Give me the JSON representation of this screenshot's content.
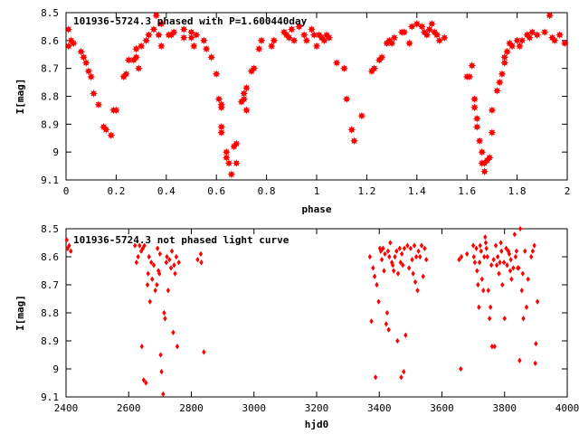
{
  "colors": {
    "series": "#ff0000",
    "axis": "#000000",
    "background": "#ffffff"
  },
  "chart_data": [
    {
      "type": "scatter",
      "title": "101936-5724.3 phased with P=1.600440day",
      "xlabel": "phase",
      "ylabel": "I[mag]",
      "xlim": [
        0,
        2
      ],
      "ylim": [
        8.5,
        9.1
      ],
      "y_inverted": true,
      "x_ticks": [
        "0",
        "0.2",
        "0.4",
        "0.6",
        "0.8",
        "1",
        "1.2",
        "1.4",
        "1.6",
        "1.8",
        "2"
      ],
      "y_ticks": [
        "8.5",
        "8.6",
        "8.7",
        "8.8",
        "8.9",
        "9",
        "9.1"
      ],
      "grid": false,
      "marker": "star",
      "points": [
        [
          0.01,
          8.56
        ],
        [
          0.01,
          8.62
        ],
        [
          0.02,
          8.6
        ],
        [
          0.03,
          8.61
        ],
        [
          0.06,
          8.64
        ],
        [
          0.07,
          8.66
        ],
        [
          0.08,
          8.68
        ],
        [
          0.09,
          8.71
        ],
        [
          0.1,
          8.73
        ],
        [
          0.11,
          8.79
        ],
        [
          0.13,
          8.83
        ],
        [
          0.15,
          8.91
        ],
        [
          0.16,
          8.92
        ],
        [
          0.18,
          8.94
        ],
        [
          0.19,
          8.85
        ],
        [
          0.2,
          8.85
        ],
        [
          0.23,
          8.73
        ],
        [
          0.24,
          8.72
        ],
        [
          0.25,
          8.67
        ],
        [
          0.27,
          8.67
        ],
        [
          0.28,
          8.66
        ],
        [
          0.28,
          8.63
        ],
        [
          0.29,
          8.7
        ],
        [
          0.3,
          8.62
        ],
        [
          0.32,
          8.6
        ],
        [
          0.33,
          8.58
        ],
        [
          0.35,
          8.56
        ],
        [
          0.36,
          8.51
        ],
        [
          0.37,
          8.58
        ],
        [
          0.38,
          8.54
        ],
        [
          0.38,
          8.62
        ],
        [
          0.41,
          8.58
        ],
        [
          0.42,
          8.58
        ],
        [
          0.43,
          8.57
        ],
        [
          0.47,
          8.56
        ],
        [
          0.47,
          8.59
        ],
        [
          0.5,
          8.59
        ],
        [
          0.5,
          8.57
        ],
        [
          0.51,
          8.62
        ],
        [
          0.52,
          8.58
        ],
        [
          0.55,
          8.6
        ],
        [
          0.56,
          8.63
        ],
        [
          0.58,
          8.66
        ],
        [
          0.6,
          8.72
        ],
        [
          0.61,
          8.81
        ],
        [
          0.62,
          8.83
        ],
        [
          0.62,
          8.84
        ],
        [
          0.62,
          8.91
        ],
        [
          0.62,
          8.93
        ],
        [
          0.64,
          9.02
        ],
        [
          0.64,
          9.0
        ],
        [
          0.65,
          9.04
        ],
        [
          0.66,
          9.08
        ],
        [
          0.67,
          8.98
        ],
        [
          0.68,
          8.97
        ],
        [
          0.68,
          9.04
        ],
        [
          0.7,
          8.82
        ],
        [
          0.71,
          8.81
        ],
        [
          0.71,
          8.79
        ],
        [
          0.72,
          8.77
        ],
        [
          0.72,
          8.85
        ],
        [
          0.74,
          8.71
        ],
        [
          0.75,
          8.7
        ],
        [
          0.77,
          8.63
        ],
        [
          0.78,
          8.6
        ],
        [
          0.82,
          8.62
        ],
        [
          0.83,
          8.6
        ],
        [
          0.87,
          8.57
        ],
        [
          0.88,
          8.58
        ],
        [
          0.89,
          8.59
        ],
        [
          0.9,
          8.56
        ],
        [
          0.91,
          8.6
        ],
        [
          0.93,
          8.55
        ],
        [
          0.95,
          8.58
        ],
        [
          0.96,
          8.6
        ],
        [
          0.98,
          8.56
        ],
        [
          0.99,
          8.58
        ],
        [
          1.0,
          8.62
        ],
        [
          1.01,
          8.58
        ],
        [
          1.02,
          8.59
        ],
        [
          1.03,
          8.6
        ],
        [
          1.04,
          8.58
        ],
        [
          1.05,
          8.59
        ],
        [
          1.08,
          8.68
        ],
        [
          1.11,
          8.7
        ],
        [
          1.12,
          8.81
        ],
        [
          1.14,
          8.92
        ],
        [
          1.15,
          8.96
        ],
        [
          1.18,
          8.87
        ],
        [
          1.22,
          8.71
        ],
        [
          1.23,
          8.7
        ],
        [
          1.25,
          8.67
        ],
        [
          1.26,
          8.66
        ],
        [
          1.28,
          8.61
        ],
        [
          1.29,
          8.6
        ],
        [
          1.3,
          8.61
        ],
        [
          1.31,
          8.59
        ],
        [
          1.34,
          8.57
        ],
        [
          1.35,
          8.57
        ],
        [
          1.37,
          8.61
        ],
        [
          1.38,
          8.55
        ],
        [
          1.4,
          8.54
        ],
        [
          1.42,
          8.55
        ],
        [
          1.43,
          8.57
        ],
        [
          1.44,
          8.58
        ],
        [
          1.45,
          8.56
        ],
        [
          1.46,
          8.54
        ],
        [
          1.47,
          8.57
        ],
        [
          1.48,
          8.58
        ],
        [
          1.49,
          8.6
        ],
        [
          1.51,
          8.59
        ],
        [
          1.6,
          8.73
        ],
        [
          1.61,
          8.73
        ],
        [
          1.62,
          8.69
        ],
        [
          1.63,
          8.81
        ],
        [
          1.63,
          8.84
        ],
        [
          1.64,
          8.88
        ],
        [
          1.64,
          8.91
        ],
        [
          1.65,
          8.96
        ],
        [
          1.66,
          9.0
        ],
        [
          1.66,
          9.04
        ],
        [
          1.67,
          9.04
        ],
        [
          1.67,
          9.07
        ],
        [
          1.68,
          9.03
        ],
        [
          1.69,
          9.02
        ],
        [
          1.7,
          8.93
        ],
        [
          1.7,
          8.85
        ],
        [
          1.72,
          8.78
        ],
        [
          1.73,
          8.75
        ],
        [
          1.74,
          8.72
        ],
        [
          1.75,
          8.68
        ],
        [
          1.75,
          8.66
        ],
        [
          1.76,
          8.64
        ],
        [
          1.77,
          8.61
        ],
        [
          1.78,
          8.62
        ],
        [
          1.8,
          8.6
        ],
        [
          1.81,
          8.62
        ],
        [
          1.82,
          8.6
        ],
        [
          1.84,
          8.58
        ],
        [
          1.85,
          8.59
        ],
        [
          1.86,
          8.57
        ],
        [
          1.88,
          8.58
        ],
        [
          1.91,
          8.57
        ],
        [
          1.93,
          8.51
        ],
        [
          1.94,
          8.59
        ],
        [
          1.95,
          8.6
        ],
        [
          1.97,
          8.58
        ],
        [
          1.99,
          8.61
        ]
      ]
    },
    {
      "type": "scatter",
      "title": "101936-5724.3 not phased light curve",
      "xlabel": "hjd0",
      "ylabel": "I[mag]",
      "xlim": [
        2400,
        4000
      ],
      "ylim": [
        8.5,
        9.1
      ],
      "y_inverted": true,
      "x_ticks": [
        "2400",
        "2600",
        "2800",
        "3000",
        "3200",
        "3400",
        "3600",
        "3800",
        "4000"
      ],
      "y_ticks": [
        "8.5",
        "8.6",
        "8.7",
        "8.8",
        "8.9",
        "9",
        "9.1"
      ],
      "grid": false,
      "marker": "diamond",
      "points": [
        [
          2402,
          8.54
        ],
        [
          2405,
          8.57
        ],
        [
          2410,
          8.56
        ],
        [
          2415,
          8.58
        ],
        [
          2620,
          8.56
        ],
        [
          2625,
          8.62
        ],
        [
          2630,
          8.6
        ],
        [
          2635,
          8.56
        ],
        [
          2640,
          8.58
        ],
        [
          2642,
          8.92
        ],
        [
          2645,
          8.57
        ],
        [
          2648,
          9.04
        ],
        [
          2650,
          8.56
        ],
        [
          2655,
          9.05
        ],
        [
          2660,
          8.7
        ],
        [
          2662,
          8.66
        ],
        [
          2665,
          8.6
        ],
        [
          2668,
          8.76
        ],
        [
          2672,
          8.62
        ],
        [
          2675,
          8.68
        ],
        [
          2680,
          8.63
        ],
        [
          2685,
          8.72
        ],
        [
          2690,
          8.7
        ],
        [
          2692,
          8.57
        ],
        [
          2695,
          8.65
        ],
        [
          2698,
          8.66
        ],
        [
          2700,
          8.59
        ],
        [
          2702,
          8.95
        ],
        [
          2705,
          9.01
        ],
        [
          2710,
          9.09
        ],
        [
          2713,
          8.8
        ],
        [
          2716,
          8.82
        ],
        [
          2720,
          8.62
        ],
        [
          2722,
          8.6
        ],
        [
          2726,
          8.72
        ],
        [
          2730,
          8.61
        ],
        [
          2735,
          8.64
        ],
        [
          2738,
          8.58
        ],
        [
          2742,
          8.87
        ],
        [
          2745,
          8.63
        ],
        [
          2748,
          8.66
        ],
        [
          2752,
          8.6
        ],
        [
          2755,
          8.92
        ],
        [
          2760,
          8.62
        ],
        [
          2820,
          8.61
        ],
        [
          2830,
          8.59
        ],
        [
          2832,
          8.62
        ],
        [
          2840,
          8.94
        ],
        [
          3370,
          8.6
        ],
        [
          3375,
          8.83
        ],
        [
          3380,
          8.64
        ],
        [
          3385,
          8.67
        ],
        [
          3388,
          9.03
        ],
        [
          3392,
          8.7
        ],
        [
          3398,
          8.76
        ],
        [
          3402,
          8.57
        ],
        [
          3405,
          8.58
        ],
        [
          3408,
          8.61
        ],
        [
          3412,
          8.57
        ],
        [
          3415,
          8.65
        ],
        [
          3418,
          8.59
        ],
        [
          3422,
          8.84
        ],
        [
          3425,
          8.8
        ],
        [
          3428,
          8.58
        ],
        [
          3430,
          8.86
        ],
        [
          3432,
          8.6
        ],
        [
          3435,
          8.55
        ],
        [
          3440,
          8.62
        ],
        [
          3443,
          8.63
        ],
        [
          3446,
          8.65
        ],
        [
          3450,
          8.6
        ],
        [
          3455,
          8.58
        ],
        [
          3458,
          8.9
        ],
        [
          3460,
          8.66
        ],
        [
          3465,
          8.57
        ],
        [
          3468,
          8.62
        ],
        [
          3470,
          9.03
        ],
        [
          3472,
          8.59
        ],
        [
          3475,
          8.63
        ],
        [
          3478,
          9.01
        ],
        [
          3480,
          8.57
        ],
        [
          3484,
          8.88
        ],
        [
          3490,
          8.56
        ],
        [
          3495,
          8.64
        ],
        [
          3500,
          8.57
        ],
        [
          3505,
          8.61
        ],
        [
          3508,
          8.66
        ],
        [
          3512,
          8.56
        ],
        [
          3515,
          8.69
        ],
        [
          3518,
          8.6
        ],
        [
          3522,
          8.72
        ],
        [
          3525,
          8.58
        ],
        [
          3530,
          8.6
        ],
        [
          3535,
          8.56
        ],
        [
          3540,
          8.67
        ],
        [
          3545,
          8.57
        ],
        [
          3550,
          8.61
        ],
        [
          3655,
          8.61
        ],
        [
          3660,
          9.0
        ],
        [
          3662,
          8.6
        ],
        [
          3680,
          8.59
        ],
        [
          3700,
          8.56
        ],
        [
          3702,
          8.6
        ],
        [
          3705,
          8.62
        ],
        [
          3710,
          8.57
        ],
        [
          3712,
          8.65
        ],
        [
          3715,
          8.7
        ],
        [
          3718,
          8.78
        ],
        [
          3720,
          8.62
        ],
        [
          3722,
          8.56
        ],
        [
          3725,
          8.58
        ],
        [
          3728,
          8.68
        ],
        [
          3732,
          8.72
        ],
        [
          3735,
          8.6
        ],
        [
          3738,
          8.53
        ],
        [
          3740,
          8.55
        ],
        [
          3742,
          8.57
        ],
        [
          3745,
          8.6
        ],
        [
          3748,
          8.72
        ],
        [
          3752,
          8.82
        ],
        [
          3755,
          8.78
        ],
        [
          3758,
          8.63
        ],
        [
          3760,
          8.92
        ],
        [
          3765,
          8.61
        ],
        [
          3768,
          8.92
        ],
        [
          3772,
          8.56
        ],
        [
          3775,
          8.63
        ],
        [
          3778,
          8.6
        ],
        [
          3782,
          8.66
        ],
        [
          3785,
          8.62
        ],
        [
          3788,
          8.55
        ],
        [
          3790,
          8.58
        ],
        [
          3793,
          8.7
        ],
        [
          3798,
          8.62
        ],
        [
          3800,
          8.82
        ],
        [
          3805,
          8.57
        ],
        [
          3808,
          8.63
        ],
        [
          3812,
          8.58
        ],
        [
          3815,
          8.59
        ],
        [
          3818,
          8.65
        ],
        [
          3820,
          8.61
        ],
        [
          3822,
          8.68
        ],
        [
          3828,
          8.64
        ],
        [
          3832,
          8.52
        ],
        [
          3835,
          8.6
        ],
        [
          3838,
          8.58
        ],
        [
          3842,
          8.64
        ],
        [
          3845,
          8.64
        ],
        [
          3848,
          8.97
        ],
        [
          3850,
          8.5
        ],
        [
          3855,
          8.72
        ],
        [
          3858,
          8.66
        ],
        [
          3860,
          8.82
        ],
        [
          3865,
          8.58
        ],
        [
          3870,
          8.78
        ],
        [
          3875,
          8.68
        ],
        [
          3885,
          8.6
        ],
        [
          3890,
          8.58
        ],
        [
          3895,
          8.56
        ],
        [
          3898,
          8.98
        ],
        [
          3900,
          8.91
        ],
        [
          3905,
          8.76
        ]
      ]
    }
  ]
}
